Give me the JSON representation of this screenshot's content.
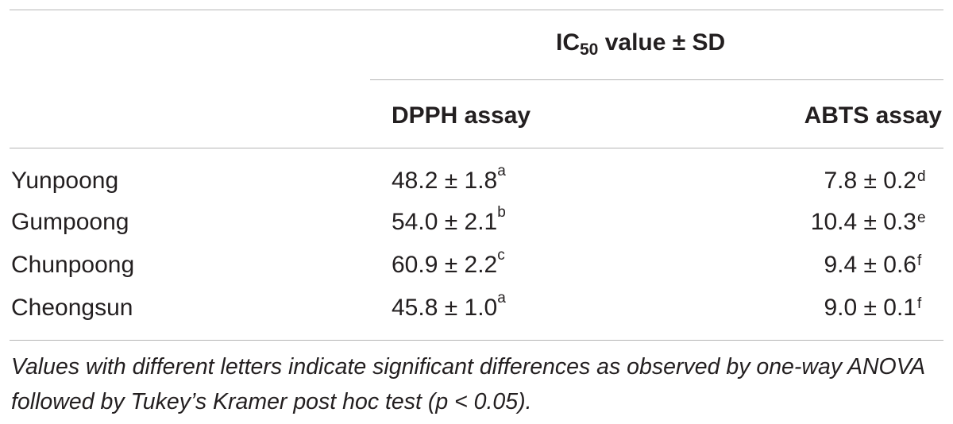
{
  "header": {
    "group_label_prefix": "IC",
    "group_label_subscript": "50",
    "group_label_suffix": " value ± SD",
    "col_dpph": "DPPH assay",
    "col_abts": "ABTS assay"
  },
  "rows": [
    {
      "name": "Yunpoong",
      "dpph": "48.2 ± 1.8",
      "dpph_sup": "a",
      "abts": "7.8 ± 0.2",
      "abts_sup": "d"
    },
    {
      "name": "Gumpoong",
      "dpph": "54.0 ± 2.1",
      "dpph_sup": "b",
      "abts": "10.4 ± 0.3",
      "abts_sup": "e"
    },
    {
      "name": "Chunpoong",
      "dpph": "60.9 ± 2.2",
      "dpph_sup": "c",
      "abts": "9.4 ± 0.6",
      "abts_sup": "f"
    },
    {
      "name": "Cheongsun",
      "dpph": "45.8 ± 1.0",
      "dpph_sup": "a",
      "abts": "9.0 ± 0.1",
      "abts_sup": "f"
    }
  ],
  "footnote": "Values with different letters indicate significant differences as observed by one-way ANOVA followed by Tukey’s Kramer post hoc test (p < 0.05)."
}
